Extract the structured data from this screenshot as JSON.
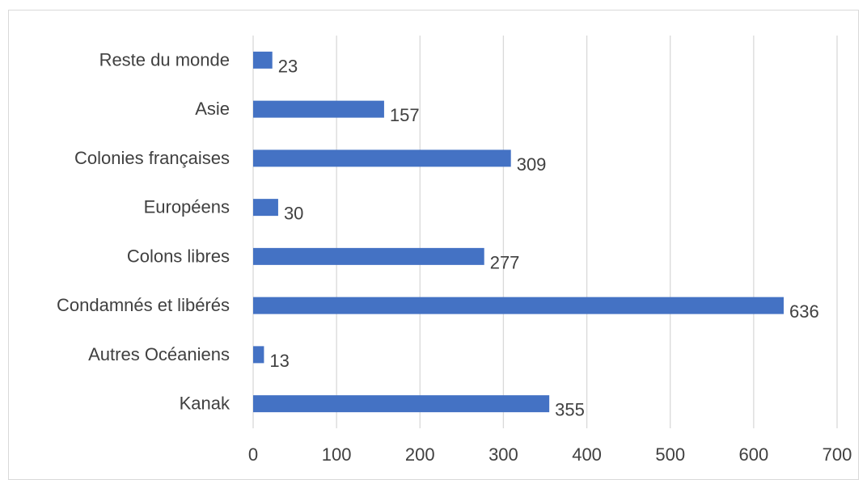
{
  "chart_data": {
    "type": "bar",
    "orientation": "horizontal",
    "title": "",
    "xlabel": "",
    "ylabel": "",
    "categories": [
      "Kanak",
      "Autres Océaniens",
      "Condamnés et libérés",
      "Colons libres",
      "Européens",
      "Colonies françaises",
      "Asie",
      "Reste du monde"
    ],
    "values": [
      355,
      13,
      636,
      277,
      30,
      309,
      157,
      23
    ],
    "xlim": [
      0,
      700
    ],
    "xticks": [
      0,
      100,
      200,
      300,
      400,
      500,
      600,
      700
    ],
    "grid": true,
    "legend": "none",
    "bar_color": "#4472C4",
    "grid_color": "#d9d9d9",
    "text_color": "#404040"
  }
}
